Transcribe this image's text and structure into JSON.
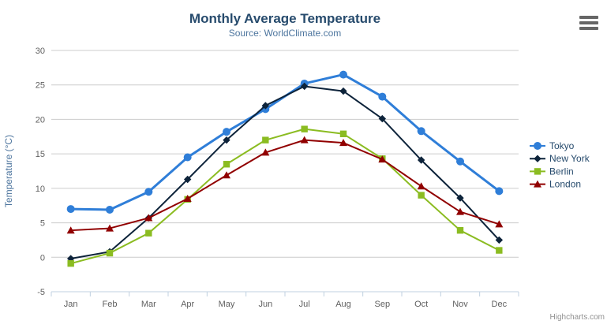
{
  "chart_data": {
    "type": "line",
    "title": "Monthly Average Temperature",
    "subtitle": "Source: WorldClimate.com",
    "xlabel": "",
    "ylabel": "Temperature (°C)",
    "categories": [
      "Jan",
      "Feb",
      "Mar",
      "Apr",
      "May",
      "Jun",
      "Jul",
      "Aug",
      "Sep",
      "Oct",
      "Nov",
      "Dec"
    ],
    "ylim": [
      -5,
      30
    ],
    "y_ticks": [
      30,
      25,
      20,
      15,
      10,
      5,
      0,
      -5
    ],
    "grid": true,
    "legend_position": "right",
    "series": [
      {
        "name": "Tokyo",
        "color": "#2f7ed8",
        "marker": "circle",
        "line_width": 3,
        "values": [
          7.0,
          6.9,
          9.5,
          14.5,
          18.2,
          21.5,
          25.2,
          26.5,
          23.3,
          18.3,
          13.9,
          9.6
        ]
      },
      {
        "name": "New York",
        "color": "#0d233a",
        "marker": "diamond",
        "line_width": 2,
        "values": [
          -0.2,
          0.8,
          5.7,
          11.3,
          17.0,
          22.0,
          24.8,
          24.1,
          20.1,
          14.1,
          8.6,
          2.5
        ]
      },
      {
        "name": "Berlin",
        "color": "#8bbc21",
        "marker": "square",
        "line_width": 2,
        "values": [
          -0.9,
          0.6,
          3.5,
          8.4,
          13.5,
          17.0,
          18.6,
          17.9,
          14.3,
          9.0,
          3.9,
          1.0
        ]
      },
      {
        "name": "London",
        "color": "#910000",
        "marker": "triangle",
        "line_width": 2,
        "values": [
          3.9,
          4.2,
          5.7,
          8.5,
          11.9,
          15.2,
          17.0,
          16.6,
          14.2,
          10.3,
          6.6,
          4.8
        ]
      }
    ],
    "style_colors": {
      "title": "#274b6d",
      "subtitle": "#4d759e",
      "y_axis_title": "#4d759e",
      "tick_label": "#606060",
      "axis_line": "#c0d0e0",
      "gridline": "#cccccc",
      "legend_text": "#274b6d",
      "credit": "#909090",
      "menu_icon": "#666666"
    },
    "credit": "Highcharts.com"
  }
}
